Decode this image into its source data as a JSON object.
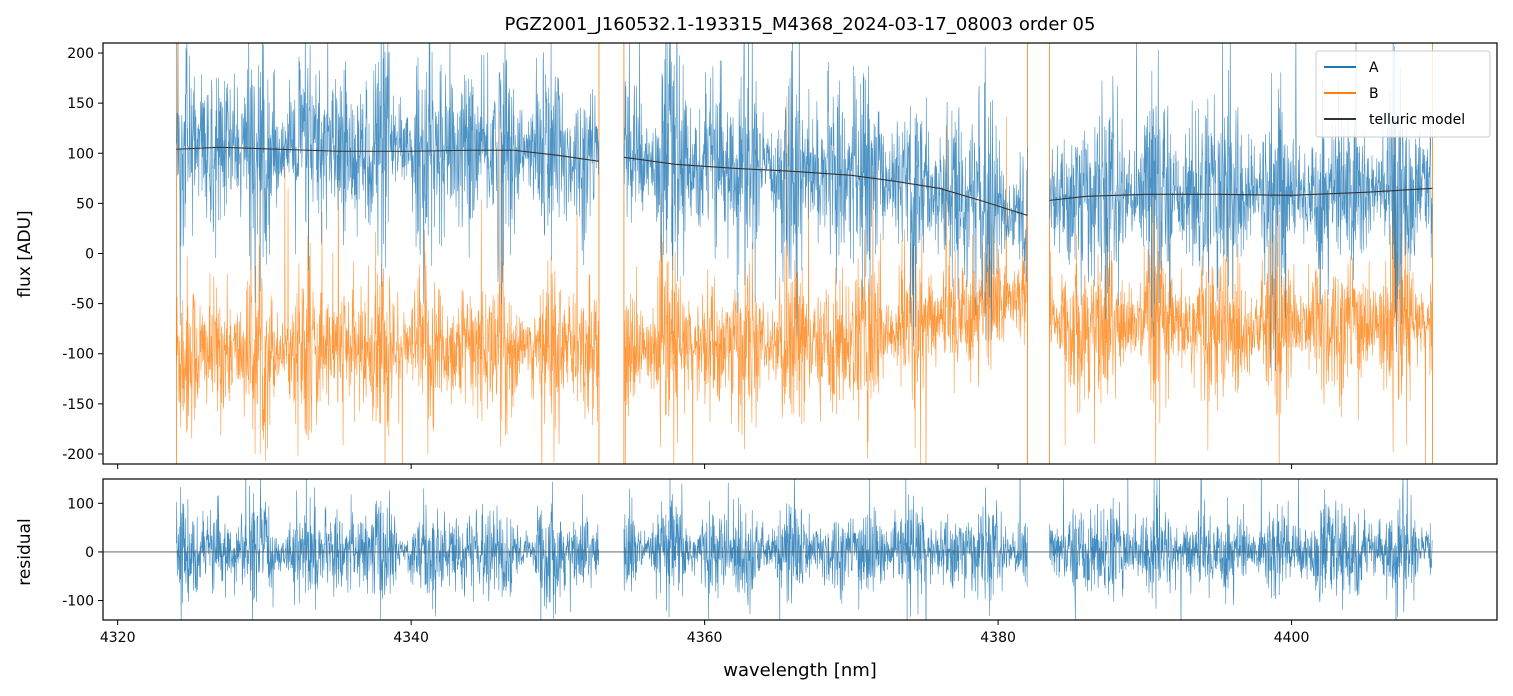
{
  "chart_data": [
    {
      "type": "line",
      "title": "PGZ2001_J160532.1-193315_M4368_2024-03-17_08003  order 05",
      "xlabel": "",
      "ylabel": "flux [ADU]",
      "xlim": [
        4319,
        4414
      ],
      "ylim": [
        -210,
        210
      ],
      "yticks": [
        -200,
        -150,
        -100,
        -50,
        0,
        50,
        100,
        150,
        200
      ],
      "xticks": [
        4320,
        4340,
        4360,
        4380,
        4400
      ],
      "grid": false,
      "legend_position": "top-right",
      "segments": [
        [
          4324.0,
          4352.8
        ],
        [
          4354.5,
          4382.0
        ],
        [
          4383.5,
          4409.6
        ]
      ],
      "series": [
        {
          "name": "A",
          "color": "#1f77b4",
          "noise_level": 55,
          "baseline": [
            [
              4324.0,
              104
            ],
            [
              4327.0,
              106
            ],
            [
              4335.0,
              102
            ],
            [
              4347.0,
              103
            ],
            [
              4352.8,
              92
            ],
            [
              4354.5,
              96
            ],
            [
              4362.0,
              85
            ],
            [
              4370.0,
              78
            ],
            [
              4376.0,
              65
            ],
            [
              4382.0,
              38
            ],
            [
              4383.5,
              53
            ],
            [
              4390.0,
              59
            ],
            [
              4400.0,
              58
            ],
            [
              4409.6,
              65
            ]
          ]
        },
        {
          "name": "B",
          "color": "#ff7f0e",
          "noise_level": 45,
          "baseline": [
            [
              4324.0,
              -100
            ],
            [
              4335.0,
              -95
            ],
            [
              4352.8,
              -95
            ],
            [
              4354.5,
              -95
            ],
            [
              4370.0,
              -90
            ],
            [
              4382.0,
              -40
            ],
            [
              4383.5,
              -70
            ],
            [
              4395.0,
              -75
            ],
            [
              4409.6,
              -70
            ]
          ]
        },
        {
          "name": "telluric model",
          "color": "#333333",
          "points": [
            [
              4324.0,
              104
            ],
            [
              4327.0,
              106
            ],
            [
              4331.0,
              104
            ],
            [
              4335.0,
              102
            ],
            [
              4340.0,
              102
            ],
            [
              4344.0,
              103
            ],
            [
              4347.0,
              103
            ],
            [
              4350.0,
              98
            ],
            [
              4352.8,
              92
            ],
            [
              4354.5,
              96
            ],
            [
              4358.0,
              89
            ],
            [
              4362.0,
              85
            ],
            [
              4366.0,
              82
            ],
            [
              4370.0,
              78
            ],
            [
              4373.0,
              72
            ],
            [
              4376.0,
              65
            ],
            [
              4379.0,
              52
            ],
            [
              4382.0,
              38
            ],
            [
              4383.5,
              53
            ],
            [
              4386.0,
              57
            ],
            [
              4390.0,
              59
            ],
            [
              4395.0,
              59
            ],
            [
              4400.0,
              58
            ],
            [
              4405.0,
              61
            ],
            [
              4409.6,
              65
            ]
          ]
        }
      ]
    },
    {
      "type": "line",
      "title": "",
      "xlabel": "wavelength [nm]",
      "ylabel": "residual",
      "xlim": [
        4319,
        4414
      ],
      "ylim": [
        -140,
        150
      ],
      "yticks": [
        -100,
        0,
        100
      ],
      "xticks": [
        4320,
        4340,
        4360,
        4380,
        4400
      ],
      "grid": false,
      "zero_line": true,
      "segments": [
        [
          4324.0,
          4352.8
        ],
        [
          4354.5,
          4382.0
        ],
        [
          4383.5,
          4409.6
        ]
      ],
      "series": [
        {
          "name": "residual",
          "color": "#1f77b4",
          "noise_level": 55,
          "baseline": [
            [
              4324.0,
              0
            ],
            [
              4409.6,
              0
            ]
          ]
        }
      ]
    }
  ]
}
